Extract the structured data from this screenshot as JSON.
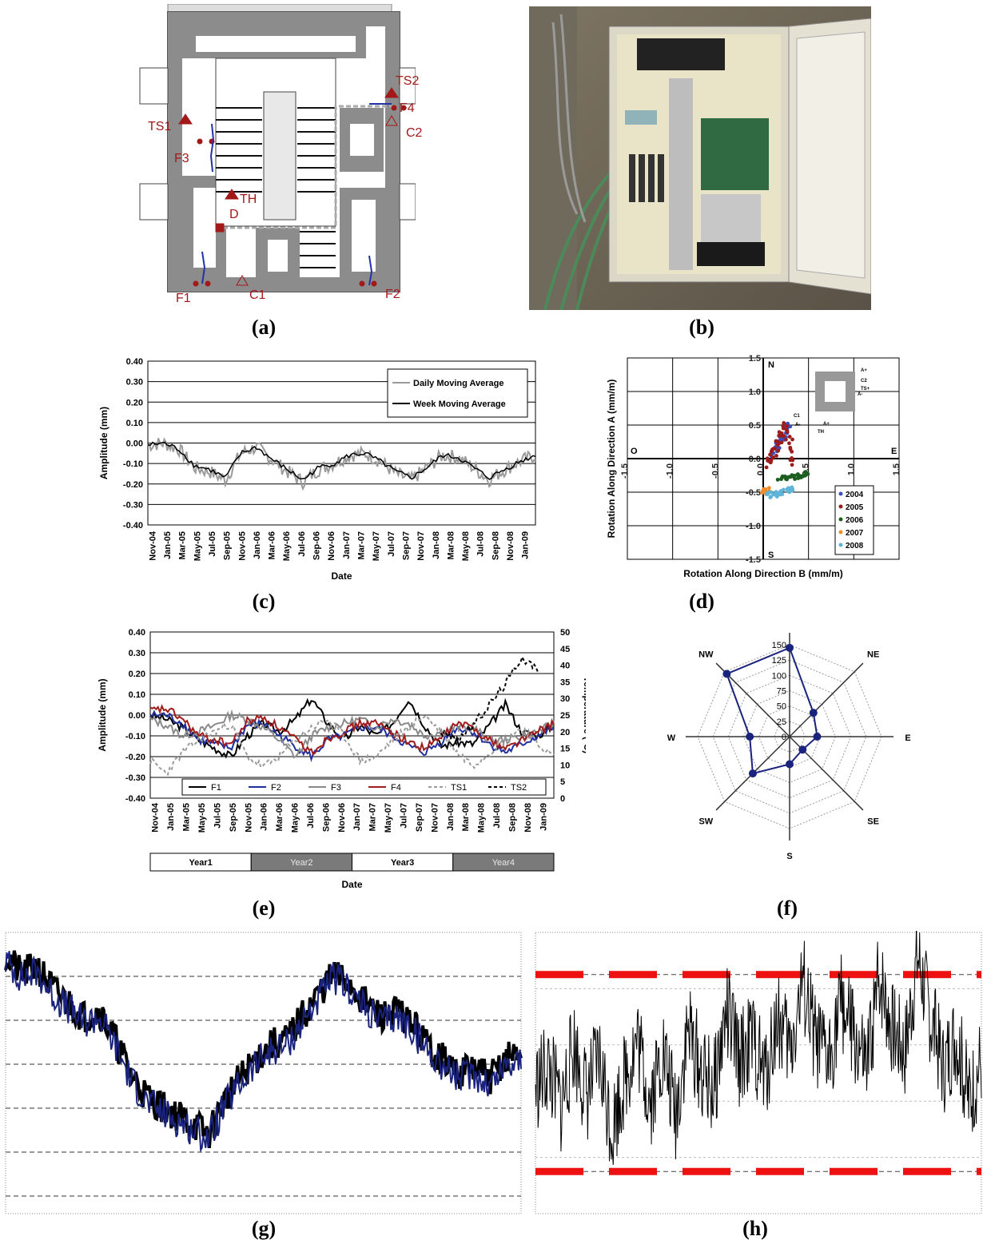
{
  "captions": [
    "(a)",
    "(b)",
    "(c)",
    "(d)",
    "(e)",
    "(f)",
    "(g)",
    "(h)"
  ],
  "panel_a": {
    "labels": [
      "TS1",
      "TS2",
      "F1",
      "F2",
      "F3",
      "F4",
      "C1",
      "C2",
      "TH",
      "D"
    ]
  },
  "chart_data": [
    {
      "id": "c",
      "type": "line",
      "xlabel": "Date",
      "ylabel": "Amplitude (mm)",
      "ylim": [
        -0.4,
        0.4
      ],
      "yticks": [
        "0.40",
        "0.30",
        "0.20",
        "0.10",
        "0.00",
        "-0.10",
        "-0.20",
        "-0.30",
        "-0.40"
      ],
      "grid": true,
      "legend_placement": "top-right",
      "categories": [
        "Nov-04",
        "Jan-05",
        "Mar-05",
        "May-05",
        "Jul-05",
        "Sep-05",
        "Nov-05",
        "Jan-06",
        "Mar-06",
        "May-06",
        "Jul-06",
        "Sep-06",
        "Nov-06",
        "Jan-07",
        "Mar-07",
        "May-07",
        "Jul-07",
        "Sep-07",
        "Nov-07",
        "Jan-08",
        "Mar-08",
        "May-08",
        "Jul-08",
        "Sep-08",
        "Nov-08",
        "Jan-09"
      ],
      "series": [
        {
          "name": "Daily Moving Average",
          "color": "#9a9a9a",
          "values": [
            -0.01,
            0.0,
            -0.03,
            -0.12,
            -0.14,
            -0.18,
            -0.05,
            -0.02,
            -0.08,
            -0.14,
            -0.19,
            -0.13,
            -0.1,
            -0.06,
            -0.05,
            -0.09,
            -0.15,
            -0.18,
            -0.12,
            -0.06,
            -0.07,
            -0.12,
            -0.18,
            -0.13,
            -0.09,
            -0.06
          ]
        },
        {
          "name": "Week Moving Average",
          "color": "#000000",
          "values": [
            -0.01,
            0.0,
            -0.03,
            -0.11,
            -0.13,
            -0.17,
            -0.05,
            -0.02,
            -0.08,
            -0.13,
            -0.18,
            -0.12,
            -0.1,
            -0.06,
            -0.05,
            -0.09,
            -0.14,
            -0.17,
            -0.12,
            -0.06,
            -0.07,
            -0.12,
            -0.17,
            -0.13,
            -0.09,
            -0.06
          ]
        }
      ]
    },
    {
      "id": "d",
      "type": "scatter",
      "xlabel": "Rotation Along Direction B (mm/m)",
      "ylabel": "Rotation Along Direction A (mm/m)",
      "xlim": [
        -1.5,
        1.5
      ],
      "ylim": [
        -1.5,
        1.5
      ],
      "xticks": [
        "-1.5",
        "-1.0",
        "-0.5",
        "0.0",
        "0.5",
        "1.0",
        "1.5"
      ],
      "yticks": [
        "1.5",
        "1.0",
        "0.5",
        "0.0",
        "-0.5",
        "-1.0",
        "-1.5"
      ],
      "compass": [
        "N",
        "S",
        "E",
        "O"
      ],
      "inset_labels": [
        "A+",
        "C2",
        "TS+",
        "C1",
        "A-",
        "A-",
        "A+",
        "TH"
      ],
      "legend_placement": "bottom-right",
      "series": [
        {
          "name": "2004",
          "color": "#3b4fb8",
          "points": [
            [
              0.1,
              0.05
            ],
            [
              0.2,
              0.3
            ],
            [
              0.3,
              0.55
            ]
          ]
        },
        {
          "name": "2005",
          "color": "#9c1c1c",
          "points": [
            [
              0.05,
              -0.1
            ],
            [
              0.15,
              0.2
            ],
            [
              0.25,
              0.5
            ],
            [
              0.35,
              -0.15
            ]
          ]
        },
        {
          "name": "2006",
          "color": "#1b5e20",
          "points": [
            [
              0.2,
              -0.3
            ],
            [
              0.35,
              -0.28
            ],
            [
              0.5,
              -0.22
            ]
          ]
        },
        {
          "name": "2007",
          "color": "#f28c28",
          "points": [
            [
              0.0,
              -0.5
            ],
            [
              0.05,
              -0.45
            ]
          ]
        },
        {
          "name": "2008",
          "color": "#5fb4d8",
          "points": [
            [
              0.05,
              -0.55
            ],
            [
              0.2,
              -0.5
            ],
            [
              0.35,
              -0.45
            ]
          ]
        }
      ]
    },
    {
      "id": "e",
      "type": "line",
      "xlabel": "Date",
      "ylabel": "Amplitude (mm)",
      "y2label": "Temperature (°C)",
      "ylim": [
        -0.4,
        0.4
      ],
      "y2lim": [
        0,
        50
      ],
      "yticks": [
        "0.40",
        "0.30",
        "0.20",
        "0.10",
        "0.00",
        "-0.10",
        "-0.20",
        "-0.30",
        "-0.40"
      ],
      "y2ticks": [
        "50",
        "45",
        "40",
        "35",
        "30",
        "25",
        "20",
        "15",
        "10",
        "5",
        "0"
      ],
      "categories": [
        "Nov-04",
        "Jan-05",
        "Mar-05",
        "May-05",
        "Jul-05",
        "Sep-05",
        "Nov-05",
        "Jan-06",
        "Mar-06",
        "May-06",
        "Jul-06",
        "Sep-06",
        "Nov-06",
        "Jan-07",
        "Mar-07",
        "May-07",
        "Jul-07",
        "Sep-07",
        "Nov-07",
        "Jan-08",
        "Mar-08",
        "May-08",
        "Jul-08",
        "Sep-08",
        "Nov-08",
        "Jan-09"
      ],
      "years": [
        "Year1",
        "Year2",
        "Year3",
        "Year4"
      ],
      "legend_placement": "bottom",
      "series": [
        {
          "name": "F1",
          "color": "#000000",
          "values": [
            0.0,
            -0.02,
            -0.06,
            -0.12,
            -0.16,
            -0.2,
            -0.1,
            -0.04,
            -0.08,
            -0.02,
            0.08,
            -0.04,
            -0.12,
            -0.05,
            -0.1,
            -0.04,
            0.08,
            -0.05,
            -0.15,
            -0.13,
            -0.14,
            -0.05,
            0.05,
            -0.08,
            -0.1,
            -0.05
          ]
        },
        {
          "name": "F2",
          "color": "#1f2fa0",
          "values": [
            0.0,
            0.0,
            -0.04,
            -0.12,
            -0.14,
            -0.16,
            -0.05,
            -0.04,
            -0.1,
            -0.15,
            -0.2,
            -0.12,
            -0.1,
            -0.06,
            -0.06,
            -0.1,
            -0.15,
            -0.18,
            -0.13,
            -0.06,
            -0.08,
            -0.14,
            -0.18,
            -0.14,
            -0.1,
            -0.06
          ]
        },
        {
          "name": "F3",
          "color": "#8a8a8a",
          "values": [
            -0.02,
            -0.05,
            -0.1,
            -0.08,
            -0.05,
            0.0,
            -0.02,
            -0.06,
            -0.12,
            -0.2,
            -0.1,
            -0.06,
            -0.04,
            -0.02,
            -0.06,
            -0.02,
            -0.04,
            -0.1,
            -0.08,
            -0.06,
            -0.06,
            -0.12,
            -0.12,
            -0.1,
            -0.08,
            -0.04
          ]
        },
        {
          "name": "F4",
          "color": "#a11c1c",
          "values": [
            0.02,
            0.03,
            -0.02,
            -0.1,
            -0.12,
            -0.14,
            -0.03,
            -0.01,
            -0.06,
            -0.12,
            -0.18,
            -0.11,
            -0.08,
            -0.04,
            -0.04,
            -0.08,
            -0.13,
            -0.16,
            -0.11,
            -0.04,
            -0.06,
            -0.12,
            -0.16,
            -0.12,
            -0.08,
            -0.04
          ]
        },
        {
          "name": "TS1",
          "color": "#9a9a9a",
          "dash": "4 3",
          "values": [
            -0.22,
            -0.28,
            -0.18,
            -0.12,
            -0.08,
            -0.04,
            -0.2,
            -0.25,
            -0.2,
            -0.12,
            -0.06,
            -0.02,
            -0.1,
            -0.22,
            -0.2,
            -0.12,
            -0.06,
            0.0,
            -0.08,
            -0.18,
            -0.24,
            -0.18,
            -0.12,
            -0.06,
            -0.14,
            -0.2
          ]
        },
        {
          "name": "TS2",
          "color": "#000000",
          "dash": "4 3",
          "values": [
            null,
            null,
            null,
            null,
            null,
            null,
            null,
            null,
            null,
            null,
            null,
            null,
            null,
            null,
            null,
            null,
            null,
            null,
            -0.08,
            -0.12,
            -0.05,
            0.05,
            0.15,
            0.28,
            0.22,
            null
          ]
        }
      ]
    },
    {
      "id": "f",
      "type": "radar",
      "categories": [
        "N",
        "NE",
        "E",
        "SE",
        "S",
        "SW",
        "W",
        "NW"
      ],
      "rticks": [
        "0",
        "25",
        "50",
        "75",
        "100",
        "125",
        "150"
      ],
      "rlim": [
        0,
        150
      ],
      "color": "#1a237e",
      "values": [
        145,
        55,
        45,
        30,
        45,
        85,
        65,
        145
      ]
    },
    {
      "id": "g",
      "type": "line",
      "series": [
        {
          "name": "",
          "color": "#000000",
          "values": [
            0.92,
            0.85,
            0.88,
            0.8,
            0.75,
            0.7,
            0.72,
            0.62,
            0.5,
            0.42,
            0.38,
            0.35,
            0.32,
            0.28,
            0.4,
            0.48,
            0.55,
            0.6,
            0.62,
            0.7,
            0.78,
            0.85,
            0.82,
            0.75,
            0.7,
            0.72,
            0.68,
            0.6,
            0.55,
            0.5,
            0.52,
            0.48,
            0.55,
            0.58
          ]
        },
        {
          "name": "",
          "color": "#1a237e",
          "values": [
            0.9,
            0.84,
            0.86,
            0.78,
            0.73,
            0.68,
            0.7,
            0.6,
            0.48,
            0.4,
            0.36,
            0.33,
            0.3,
            0.27,
            0.38,
            0.46,
            0.53,
            0.58,
            0.6,
            0.68,
            0.76,
            0.84,
            0.8,
            0.73,
            0.68,
            0.7,
            0.66,
            0.58,
            0.53,
            0.48,
            0.5,
            0.46,
            0.53,
            0.56
          ]
        }
      ],
      "grid": true
    },
    {
      "id": "h",
      "type": "line",
      "series": [
        {
          "name": "",
          "color": "#000000",
          "values": [
            0.45,
            0.52,
            0.38,
            0.6,
            0.42,
            0.55,
            0.3,
            0.48,
            0.62,
            0.4,
            0.58,
            0.35,
            0.66,
            0.5,
            0.44,
            0.72,
            0.55,
            0.62,
            0.48,
            0.7,
            0.58,
            0.82,
            0.6,
            0.54,
            0.76,
            0.62,
            0.5,
            0.85,
            0.66,
            0.58,
            0.92,
            0.7,
            0.52,
            0.64,
            0.4,
            0.55
          ]
        }
      ],
      "limits": [
        0.85,
        0.15
      ],
      "limit_color": "#ee1111",
      "grid": true
    }
  ]
}
